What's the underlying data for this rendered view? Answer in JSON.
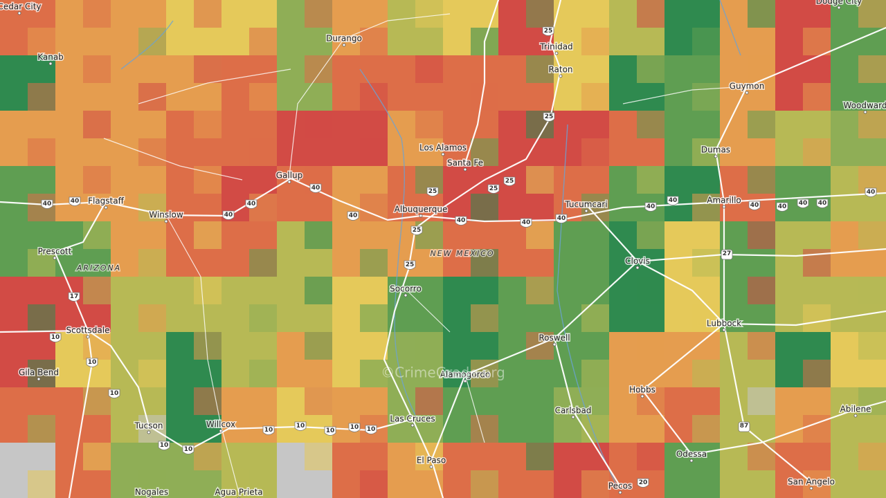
{
  "places": {
    "cities": [
      "Cedar City",
      "Kanab",
      "Durango",
      "Trinidad",
      "Raton",
      "Dodge City",
      "Guymon",
      "Woodward",
      "Dumas",
      "Amarillo",
      "Tucumcari",
      "Los Alamos",
      "Santa Fe",
      "Gallup",
      "Albuquerque",
      "Flagstaff",
      "Winslow",
      "Prescott",
      "Scottsdale",
      "Gila Bend",
      "Socorro",
      "Clovis",
      "Lubbock",
      "Roswell",
      "Alamogordo",
      "Hobbs",
      "Carlsbad",
      "Las Cruces",
      "El Paso",
      "Tucson",
      "Willcox",
      "Agua Prieta",
      "Nogales",
      "Pecos",
      "Odessa",
      "San Angelo",
      "Abilene"
    ],
    "regions": [
      "ARIZONA",
      "NEW MEXICO"
    ]
  },
  "shields": {
    "interstate": [
      "40",
      "25",
      "10",
      "17",
      "20"
    ],
    "us": [
      "27",
      "87"
    ]
  },
  "watermark": "©CrimeGrade.org"
}
